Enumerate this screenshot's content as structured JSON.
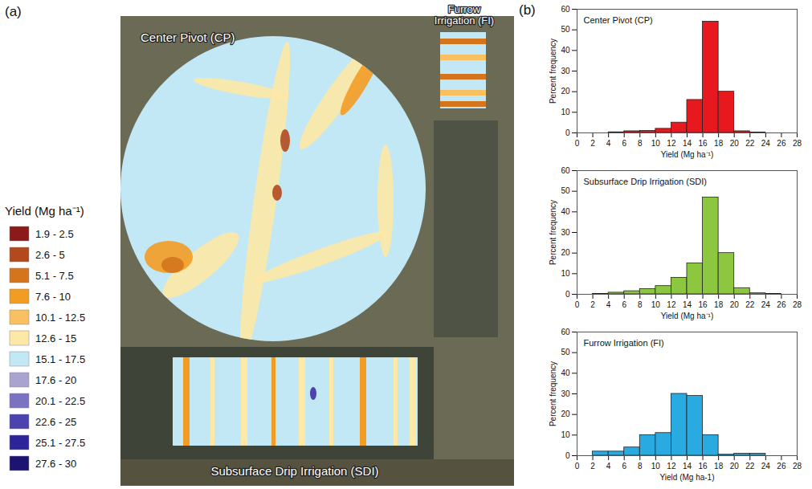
{
  "panel_labels": [
    "(a)",
    "(b)"
  ],
  "map": {
    "fields": [
      "Center Pivot (CP)",
      "Furrow Irrigation (FI)",
      "Subsurface Drip Irrigation (SDI)"
    ],
    "legend": {
      "title": "Yield (Mg ha⁻¹)",
      "labels": [
        "1.9 - 2.5",
        "2.6 - 5",
        "5.1 - 7.5",
        "7.6 - 10",
        "10.1 - 12.5",
        "12.6 - 15",
        "15.1 - 17.5",
        "17.6 - 20",
        "20.1 - 22.5",
        "22.6 - 25",
        "25.1 - 27.5",
        "27.6 - 30"
      ],
      "colors": [
        "#8b1a1a",
        "#b34a1e",
        "#d4741c",
        "#f39c23",
        "#f8c060",
        "#fde8a6",
        "#c2e8f6",
        "#a8a3cf",
        "#7b72c4",
        "#4d43b0",
        "#2e2499",
        "#1c1470"
      ]
    }
  },
  "chart_data": [
    {
      "type": "histogram",
      "title": "Center Pivot (CP)",
      "color": "#e8191e",
      "bins": [
        0,
        2,
        4,
        6,
        8,
        10,
        12,
        14,
        16,
        18,
        20,
        22,
        24,
        26,
        28
      ],
      "values": [
        0,
        0,
        0.3,
        0.8,
        1,
        2,
        5,
        16,
        54,
        20,
        0.8,
        0.2,
        0,
        0
      ],
      "xlabel": "Yield (Mg ha⁻¹)",
      "ylabel": "Percent frequency",
      "xlim": [
        0,
        28
      ],
      "xticks": [
        0,
        2,
        4,
        6,
        8,
        10,
        12,
        14,
        16,
        18,
        20,
        22,
        24,
        26,
        28
      ],
      "ylim": [
        0,
        60
      ],
      "yticks": [
        0,
        10,
        20,
        30,
        40,
        50,
        60
      ]
    },
    {
      "type": "histogram",
      "title": "Subsurface Drip Irrigation (SDI)",
      "color": "#8dc63f",
      "bins": [
        0,
        2,
        4,
        6,
        8,
        10,
        12,
        14,
        16,
        18,
        20,
        22,
        24,
        26,
        28
      ],
      "values": [
        0,
        0.2,
        0.8,
        1.5,
        2.5,
        4,
        8,
        15,
        47,
        20,
        3,
        0.5,
        0.2,
        0
      ],
      "xlabel": "Yield (Mg ha⁻¹)",
      "ylabel": "Percent frequency",
      "xlim": [
        0,
        28
      ],
      "xticks": [
        0,
        2,
        4,
        6,
        8,
        10,
        12,
        14,
        16,
        18,
        20,
        22,
        24,
        26,
        28
      ],
      "ylim": [
        0,
        60
      ],
      "yticks": [
        0,
        10,
        20,
        30,
        40,
        50,
        60
      ]
    },
    {
      "type": "histogram",
      "title": "Furrow Irrigation (FI)",
      "color": "#29abe2",
      "bins": [
        0,
        2,
        4,
        6,
        8,
        10,
        12,
        14,
        16,
        18,
        20,
        22,
        24,
        26,
        28
      ],
      "values": [
        0,
        2,
        2,
        4,
        10,
        11,
        30,
        29,
        10,
        0.5,
        1,
        1,
        0,
        0
      ],
      "xlabel": "Yield (Mg ha-1)",
      "ylabel": "Percent frequency",
      "xlim": [
        0,
        28
      ],
      "xticks": [
        0,
        2,
        4,
        6,
        8,
        10,
        12,
        14,
        16,
        18,
        20,
        22,
        24,
        26,
        28
      ],
      "ylim": [
        0,
        60
      ],
      "yticks": [
        0,
        10,
        20,
        30,
        40,
        50,
        60
      ]
    }
  ]
}
